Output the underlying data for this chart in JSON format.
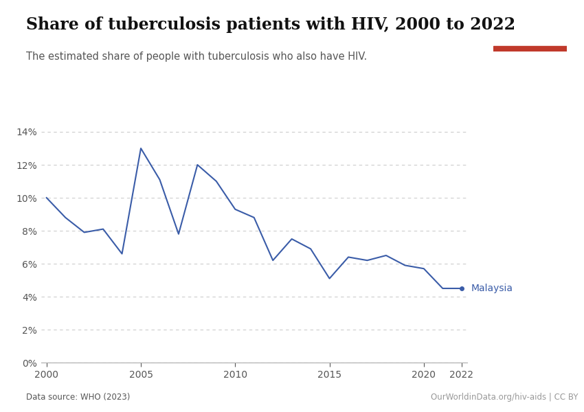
{
  "title": "Share of tuberculosis patients with HIV, 2000 to 2022",
  "subtitle": "The estimated share of people with tuberculosis who also have HIV.",
  "datasource": "Data source: WHO (2023)",
  "url": "OurWorldinData.org/hiv-aids | CC BY",
  "label": "Malaysia",
  "line_color": "#3a5ca8",
  "background_color": "#ffffff",
  "years": [
    2000,
    2001,
    2002,
    2003,
    2004,
    2005,
    2006,
    2007,
    2008,
    2009,
    2010,
    2011,
    2012,
    2013,
    2014,
    2015,
    2016,
    2017,
    2018,
    2019,
    2020,
    2021,
    2022
  ],
  "values": [
    0.1,
    0.088,
    0.079,
    0.081,
    0.066,
    0.13,
    0.111,
    0.078,
    0.12,
    0.11,
    0.093,
    0.088,
    0.062,
    0.075,
    0.069,
    0.051,
    0.064,
    0.062,
    0.065,
    0.059,
    0.057,
    0.045,
    0.045
  ],
  "ylim": [
    0,
    0.145
  ],
  "yticks": [
    0,
    0.02,
    0.04,
    0.06,
    0.08,
    0.1,
    0.12,
    0.14
  ],
  "xticks": [
    2000,
    2005,
    2010,
    2015,
    2020,
    2022
  ],
  "owid_box_color": "#1a3560",
  "owid_box_red": "#c0392b",
  "title_fontsize": 17,
  "subtitle_fontsize": 10.5,
  "label_fontsize": 10,
  "tick_fontsize": 10
}
